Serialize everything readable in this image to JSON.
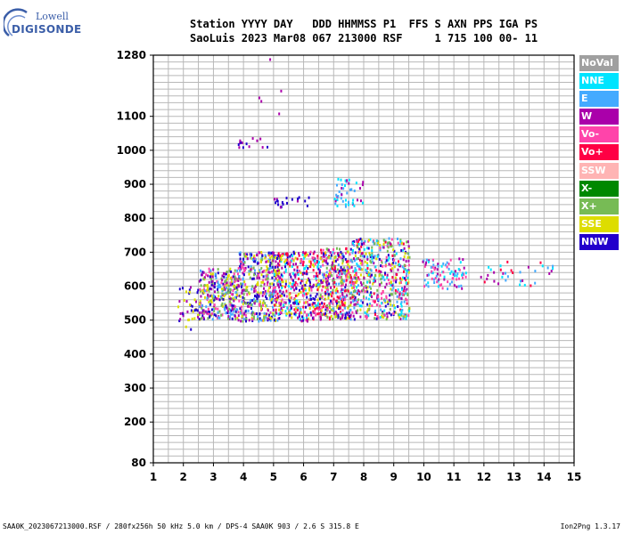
{
  "logo": {
    "top": "Lowell",
    "bottom": "DIGISONDE"
  },
  "header": {
    "line1": "Station YYYY DAY   DDD HHMMSS P1  FFS S AXN PPS IGA PS",
    "line2": "SaoLuis 2023 Mar08 067 213000 RSF     1 715 100 00- 11"
  },
  "legend": [
    {
      "label": "NoVal",
      "color": "#a0a0a0"
    },
    {
      "label": "NNE",
      "color": "#00e4ff"
    },
    {
      "label": "E",
      "color": "#44aaff"
    },
    {
      "label": "W",
      "color": "#aa00aa"
    },
    {
      "label": "Vo-",
      "color": "#ff44aa"
    },
    {
      "label": "Vo+",
      "color": "#ff0044"
    },
    {
      "label": "SSW",
      "color": "#ffb4b4"
    },
    {
      "label": "X-",
      "color": "#008800"
    },
    {
      "label": "X+",
      "color": "#77bb55"
    },
    {
      "label": "SSE",
      "color": "#dddd00"
    },
    {
      "label": "NNW",
      "color": "#2200cc"
    }
  ],
  "footer": {
    "left": "SAA0K_2023067213000.RSF / 280fx256h 50 kHz 5.0 km / DPS-4 SAA0K 903 / 2.6 S 315.8 E",
    "right": "Ion2Png 1.3.17"
  },
  "chart_data": {
    "type": "scatter",
    "xlabel": "",
    "ylabel": "",
    "xlim": [
      1,
      15
    ],
    "ylim": [
      80,
      1280
    ],
    "x_ticks": [
      1,
      2,
      3,
      4,
      5,
      6,
      7,
      8,
      9,
      10,
      11,
      12,
      13,
      14,
      15
    ],
    "y_ticks": [
      80,
      200,
      300,
      400,
      500,
      600,
      700,
      800,
      900,
      1000,
      1100,
      1280
    ],
    "grid": true,
    "clusters": [
      {
        "x": [
          2.5,
          3.8
        ],
        "y": [
          500,
          650
        ],
        "density": 320,
        "colors": [
          "#2200cc",
          "#aa00aa",
          "#dddd00",
          "#44aaff",
          "#ff44aa",
          "#77bb55"
        ]
      },
      {
        "x": [
          1.8,
          2.5
        ],
        "y": [
          470,
          600
        ],
        "density": 40,
        "colors": [
          "#dddd00",
          "#2200cc",
          "#aa00aa"
        ]
      },
      {
        "x": [
          3.8,
          5.2
        ],
        "y": [
          495,
          700
        ],
        "density": 420,
        "colors": [
          "#2200cc",
          "#aa00aa",
          "#ff44aa",
          "#dddd00",
          "#44aaff",
          "#77bb55"
        ]
      },
      {
        "x": [
          5.0,
          6.5
        ],
        "y": [
          495,
          700
        ],
        "density": 380,
        "colors": [
          "#2200cc",
          "#aa00aa",
          "#ff44aa",
          "#ff0044",
          "#00e4ff",
          "#dddd00"
        ]
      },
      {
        "x": [
          6.5,
          7.6
        ],
        "y": [
          500,
          710
        ],
        "density": 380,
        "colors": [
          "#ff44aa",
          "#ff0044",
          "#2200cc",
          "#aa00aa",
          "#dddd00",
          "#44aaff",
          "#77bb55"
        ]
      },
      {
        "x": [
          7.6,
          9.5
        ],
        "y": [
          500,
          740
        ],
        "density": 520,
        "colors": [
          "#44aaff",
          "#00e4ff",
          "#ff44aa",
          "#ff0044",
          "#2200cc",
          "#aa00aa",
          "#77bb55",
          "#dddd00"
        ]
      },
      {
        "x": [
          9.9,
          11.4
        ],
        "y": [
          590,
          680
        ],
        "density": 90,
        "colors": [
          "#44aaff",
          "#00e4ff",
          "#aa00aa",
          "#ff44aa"
        ]
      },
      {
        "x": [
          11.8,
          14.3
        ],
        "y": [
          600,
          680
        ],
        "density": 35,
        "colors": [
          "#00e4ff",
          "#aa00aa",
          "#ff0044",
          "#44aaff"
        ]
      },
      {
        "x": [
          7.0,
          8.0
        ],
        "y": [
          830,
          920
        ],
        "density": 45,
        "colors": [
          "#44aaff",
          "#00e4ff",
          "#aa00aa"
        ]
      },
      {
        "x": [
          5.0,
          6.2
        ],
        "y": [
          830,
          860
        ],
        "density": 20,
        "colors": [
          "#aa00aa",
          "#2200cc"
        ]
      },
      {
        "x": [
          3.6,
          4.8
        ],
        "y": [
          1005,
          1035
        ],
        "density": 14,
        "colors": [
          "#aa00aa",
          "#2200cc"
        ]
      },
      {
        "x": [
          4.3,
          5.6
        ],
        "y": [
          1080,
          1270
        ],
        "density": 5,
        "colors": [
          "#aa00aa"
        ]
      }
    ]
  }
}
